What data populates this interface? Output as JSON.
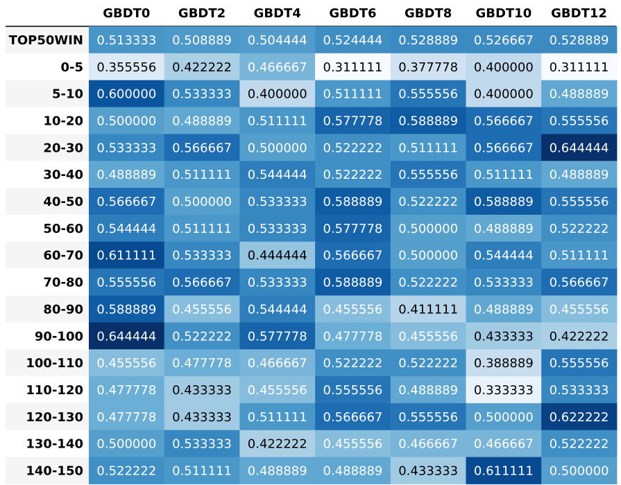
{
  "chart_data": {
    "type": "heatmap",
    "title": "",
    "xlabel": "",
    "ylabel": "",
    "colormap": "Blues",
    "value_range": [
      0.311111,
      0.644444
    ],
    "columns": [
      "GBDT0",
      "GBDT2",
      "GBDT4",
      "GBDT6",
      "GBDT8",
      "GBDT10",
      "GBDT12"
    ],
    "rows": [
      "TOP50WIN",
      "0-5",
      "5-10",
      "10-20",
      "20-30",
      "30-40",
      "40-50",
      "50-60",
      "60-70",
      "70-80",
      "80-90",
      "90-100",
      "100-110",
      "110-120",
      "120-130",
      "130-140",
      "140-150"
    ],
    "values": [
      [
        "0.513333",
        "0.508889",
        "0.504444",
        "0.524444",
        "0.528889",
        "0.526667",
        "0.528889"
      ],
      [
        "0.355556",
        "0.422222",
        "0.466667",
        "0.311111",
        "0.377778",
        "0.400000",
        "0.311111"
      ],
      [
        "0.600000",
        "0.533333",
        "0.400000",
        "0.511111",
        "0.555556",
        "0.400000",
        "0.488889"
      ],
      [
        "0.500000",
        "0.488889",
        "0.511111",
        "0.577778",
        "0.588889",
        "0.566667",
        "0.555556"
      ],
      [
        "0.533333",
        "0.566667",
        "0.500000",
        "0.522222",
        "0.511111",
        "0.566667",
        "0.644444"
      ],
      [
        "0.488889",
        "0.511111",
        "0.544444",
        "0.522222",
        "0.555556",
        "0.511111",
        "0.488889"
      ],
      [
        "0.566667",
        "0.500000",
        "0.533333",
        "0.588889",
        "0.522222",
        "0.588889",
        "0.555556"
      ],
      [
        "0.544444",
        "0.511111",
        "0.533333",
        "0.577778",
        "0.500000",
        "0.488889",
        "0.522222"
      ],
      [
        "0.611111",
        "0.533333",
        "0.444444",
        "0.566667",
        "0.500000",
        "0.544444",
        "0.511111"
      ],
      [
        "0.555556",
        "0.566667",
        "0.533333",
        "0.588889",
        "0.522222",
        "0.533333",
        "0.566667"
      ],
      [
        "0.588889",
        "0.455556",
        "0.544444",
        "0.455556",
        "0.411111",
        "0.488889",
        "0.455556"
      ],
      [
        "0.644444",
        "0.522222",
        "0.577778",
        "0.477778",
        "0.455556",
        "0.433333",
        "0.422222"
      ],
      [
        "0.455556",
        "0.477778",
        "0.466667",
        "0.522222",
        "0.522222",
        "0.388889",
        "0.555556"
      ],
      [
        "0.477778",
        "0.433333",
        "0.455556",
        "0.555556",
        "0.488889",
        "0.333333",
        "0.533333"
      ],
      [
        "0.477778",
        "0.433333",
        "0.511111",
        "0.566667",
        "0.555556",
        "0.500000",
        "0.622222"
      ],
      [
        "0.500000",
        "0.533333",
        "0.422222",
        "0.455556",
        "0.466667",
        "0.466667",
        "0.522222"
      ],
      [
        "0.522222",
        "0.511111",
        "0.488889",
        "0.488889",
        "0.433333",
        "0.611111",
        "0.500000"
      ]
    ]
  }
}
